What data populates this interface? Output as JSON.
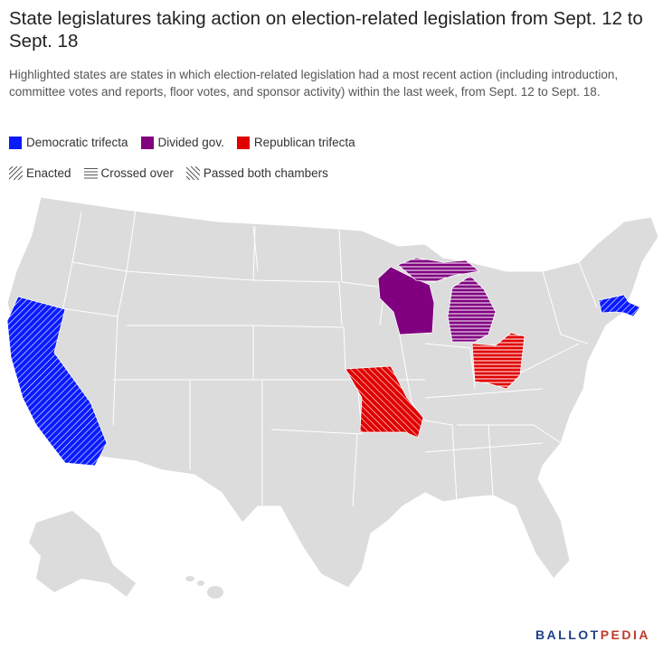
{
  "title": "State legislatures taking action on election-related legislation from Sept. 12 to Sept. 18",
  "subtitle": "Highlighted states are states in which election-related legislation had a most recent action (including introduction, committee votes and reports, floor votes, and sponsor activity) within the last week, from Sept. 12 to Sept. 18.",
  "legend": {
    "colors": [
      {
        "label": "Democratic trifecta",
        "color": "#0a1aff"
      },
      {
        "label": "Divided gov.",
        "color": "#800080"
      },
      {
        "label": "Republican trifecta",
        "color": "#e00000"
      }
    ],
    "patterns": [
      {
        "label": "Enacted",
        "pattern": "diagonal"
      },
      {
        "label": "Crossed over",
        "pattern": "horizontal"
      },
      {
        "label": "Passed both chambers",
        "pattern": "backdiagonal"
      }
    ]
  },
  "map": {
    "base_color": "#dcdcdc",
    "highlighted_states": [
      {
        "state": "California",
        "government": "Democratic trifecta",
        "status": "Passed both chambers"
      },
      {
        "state": "Massachusetts",
        "government": "Democratic trifecta",
        "status": "Passed both chambers"
      },
      {
        "state": "Wisconsin",
        "government": "Divided gov.",
        "status": "none"
      },
      {
        "state": "Michigan",
        "government": "Divided gov.",
        "status": "Crossed over"
      },
      {
        "state": "Missouri",
        "government": "Republican trifecta",
        "status": "Enacted"
      },
      {
        "state": "Ohio",
        "government": "Republican trifecta",
        "status": "Crossed over"
      }
    ]
  },
  "logo": {
    "part1": "BALLOT",
    "part2": "PEDIA"
  }
}
